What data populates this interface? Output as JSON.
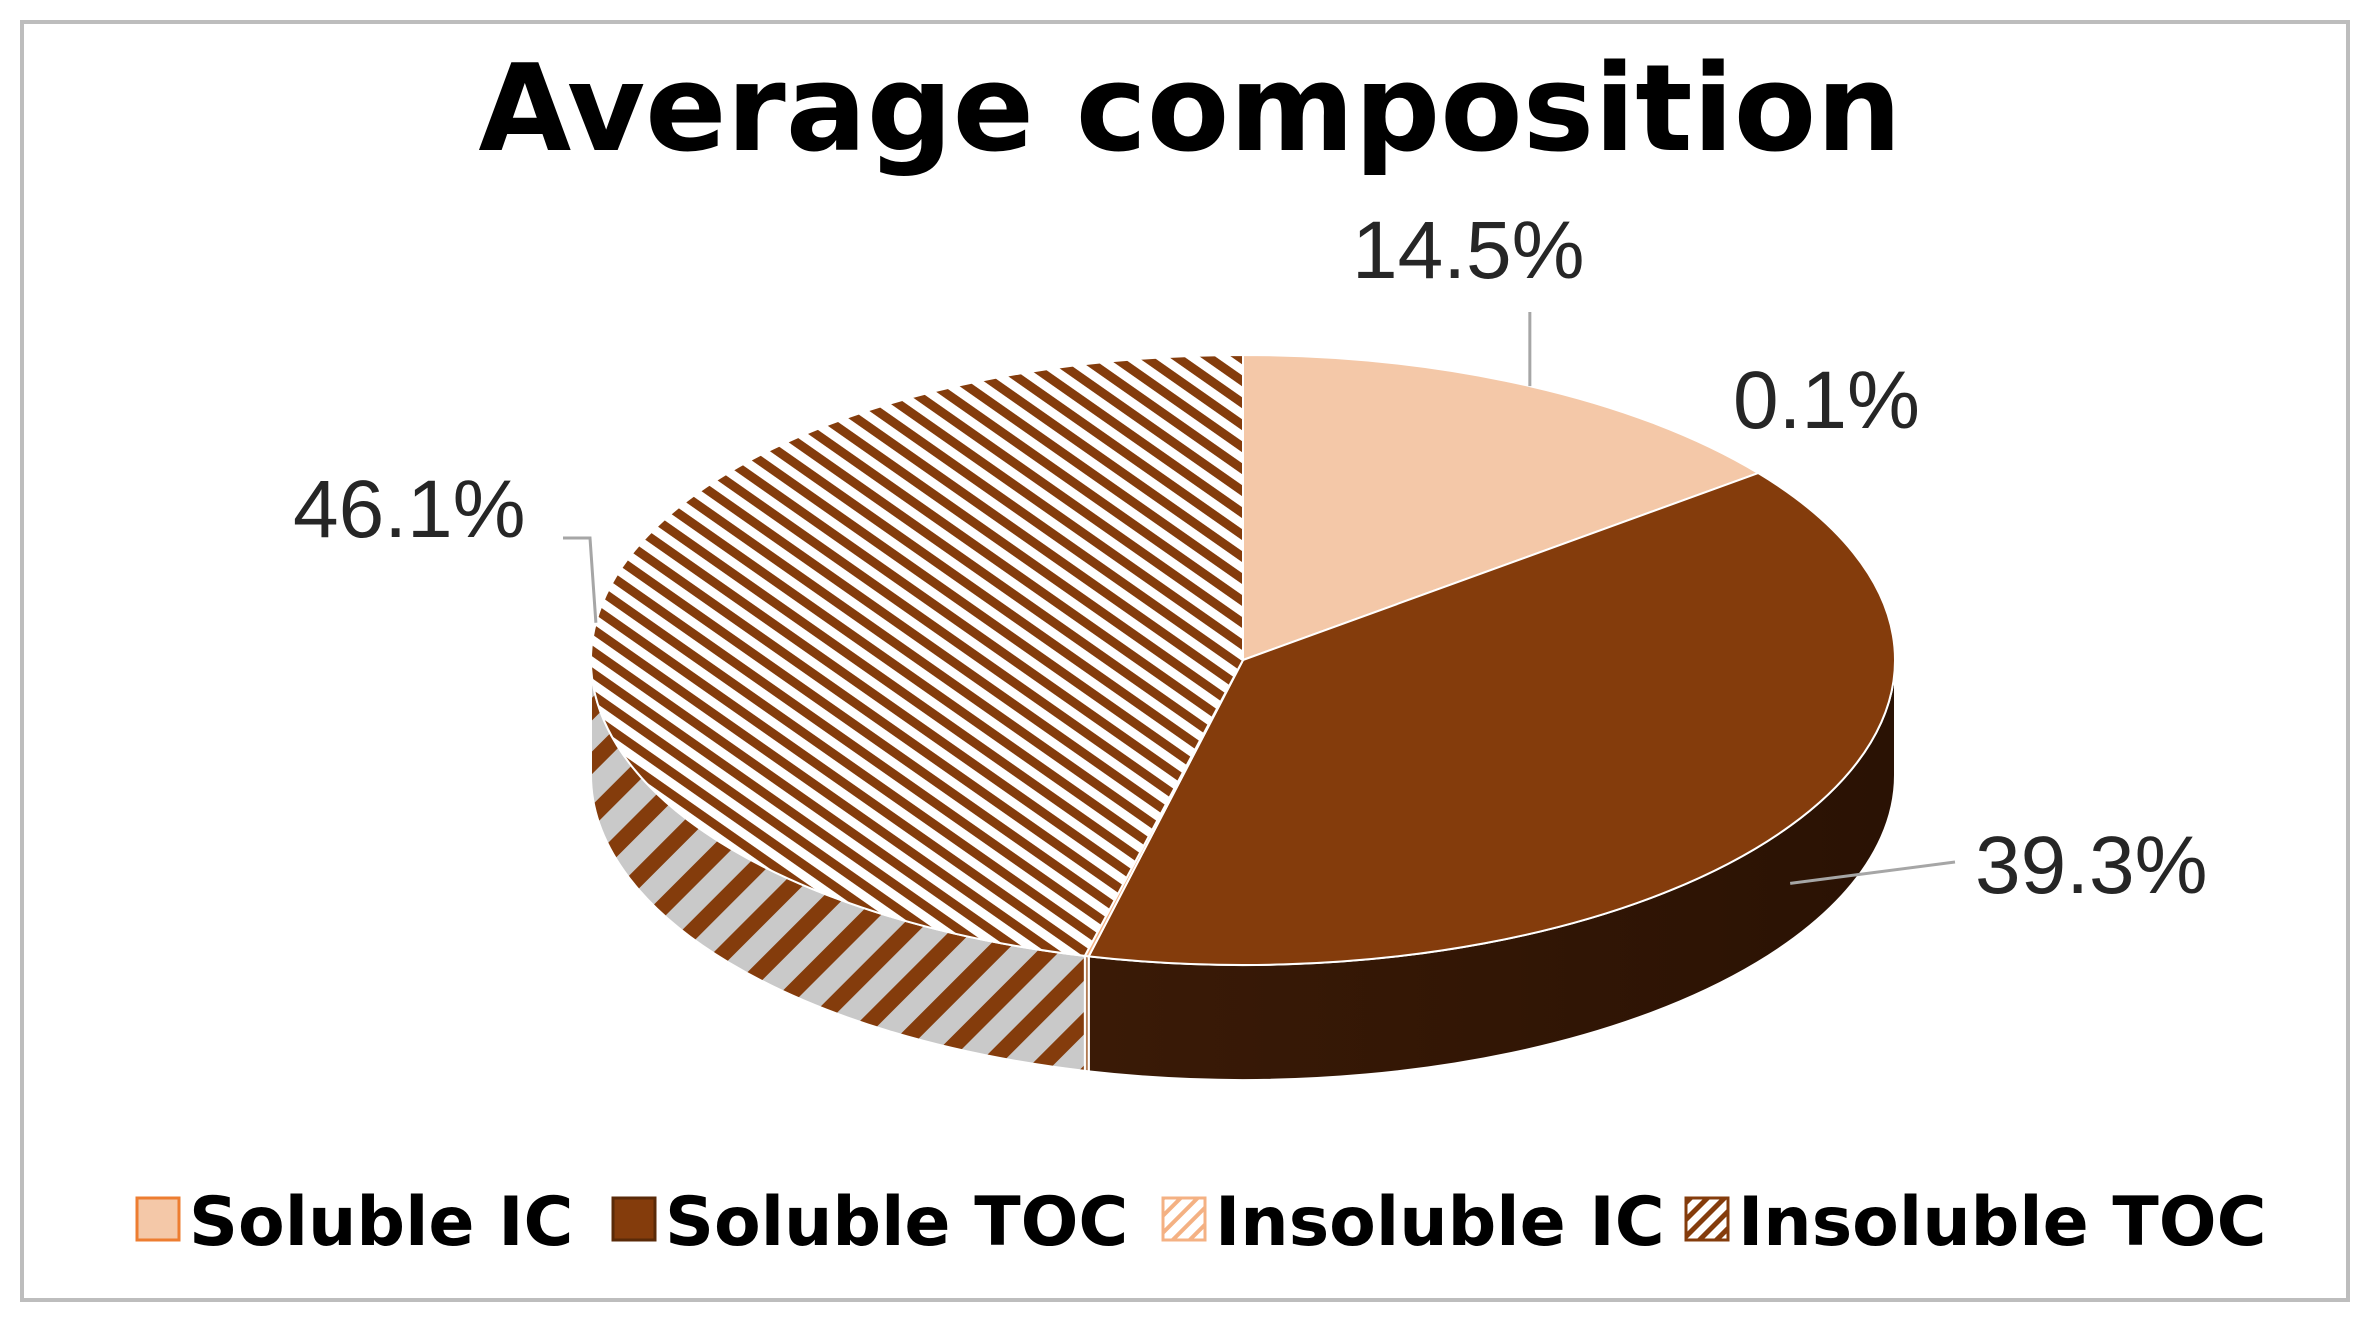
{
  "chart_data": {
    "type": "pie",
    "title": "Average composition",
    "slices": [
      {
        "label": "Soluble IC",
        "value": 14.5,
        "display": "14.5%",
        "color": "#F4C8A8",
        "pattern": "solid"
      },
      {
        "label": "Soluble TOC",
        "value": 39.3,
        "display": "39.3%",
        "color": "#843C0C",
        "pattern": "solid"
      },
      {
        "label": "Insoluble IC",
        "value": 0.1,
        "display": "0.1%",
        "color": "#F4B183",
        "pattern": "wide-diagonal"
      },
      {
        "label": "Insoluble TOC",
        "value": 46.1,
        "display": "46.1%",
        "color": "#843C0C",
        "pattern": "diagonal"
      }
    ],
    "legend": {
      "position": "bottom",
      "items": [
        "Soluble IC",
        "Soluble TOC",
        "Insoluble IC",
        "Insoluble TOC"
      ]
    },
    "3d": true
  }
}
